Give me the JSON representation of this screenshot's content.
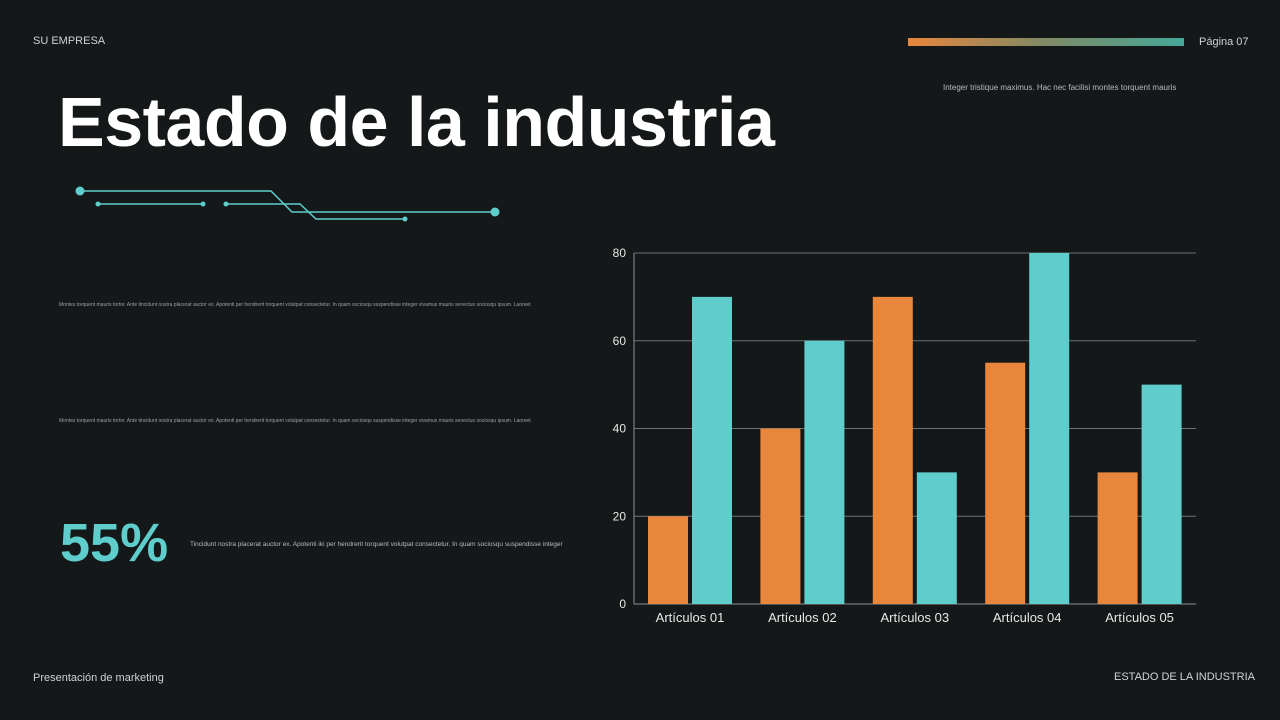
{
  "header": {
    "company": "SU EMPRESA",
    "page": "Página 07",
    "tagline": "Integer tristique maximus. Hac nec facilisi montes torquent mauris"
  },
  "title": "Estado de la industria",
  "body": {
    "para1": "Montes torquent mauris tortor. Ante tincidunt nostra placerat auctor ex. Apotenti per hendrerit torquent volutpat consectetur. In quam sociosqu suspendisse integer vivamus mauris senectus sociosqu ipsum. Laoreet",
    "para2": "Montes torquent mauris tortor. Ante tincidunt nostra placerat auctor ex. Apotenti per hendrerit torquent volutpat consectetur. In quam sociosqu suspendisse integer vivamus mauris senectus sociosqu ipsum. Laoreet",
    "stat": "55%",
    "stat_text": "Tincidunt nostra placerat auctor ex. Apotenti iki per hendrerit torquent volutpat consectetur. In quam sociosqu suspendisse integer"
  },
  "footer": {
    "left": "Presentación de marketing",
    "right": "ESTADO DE LA INDUSTRIA"
  },
  "colors": {
    "orange": "#e8863c",
    "teal": "#5ecdcc",
    "background": "#151819"
  },
  "chart_data": {
    "type": "bar",
    "categories": [
      "Artículos 01",
      "Artículos 02",
      "Artículos 03",
      "Artículos 04",
      "Artículos 05"
    ],
    "series": [
      {
        "values": [
          20,
          40,
          70,
          55,
          30
        ],
        "color": "#e8863c"
      },
      {
        "values": [
          70,
          60,
          30,
          80,
          50
        ],
        "color": "#5ecdcc"
      }
    ],
    "yticks": [
      0,
      20,
      40,
      60,
      80
    ],
    "ylim": [
      0,
      80
    ],
    "grid": true
  }
}
